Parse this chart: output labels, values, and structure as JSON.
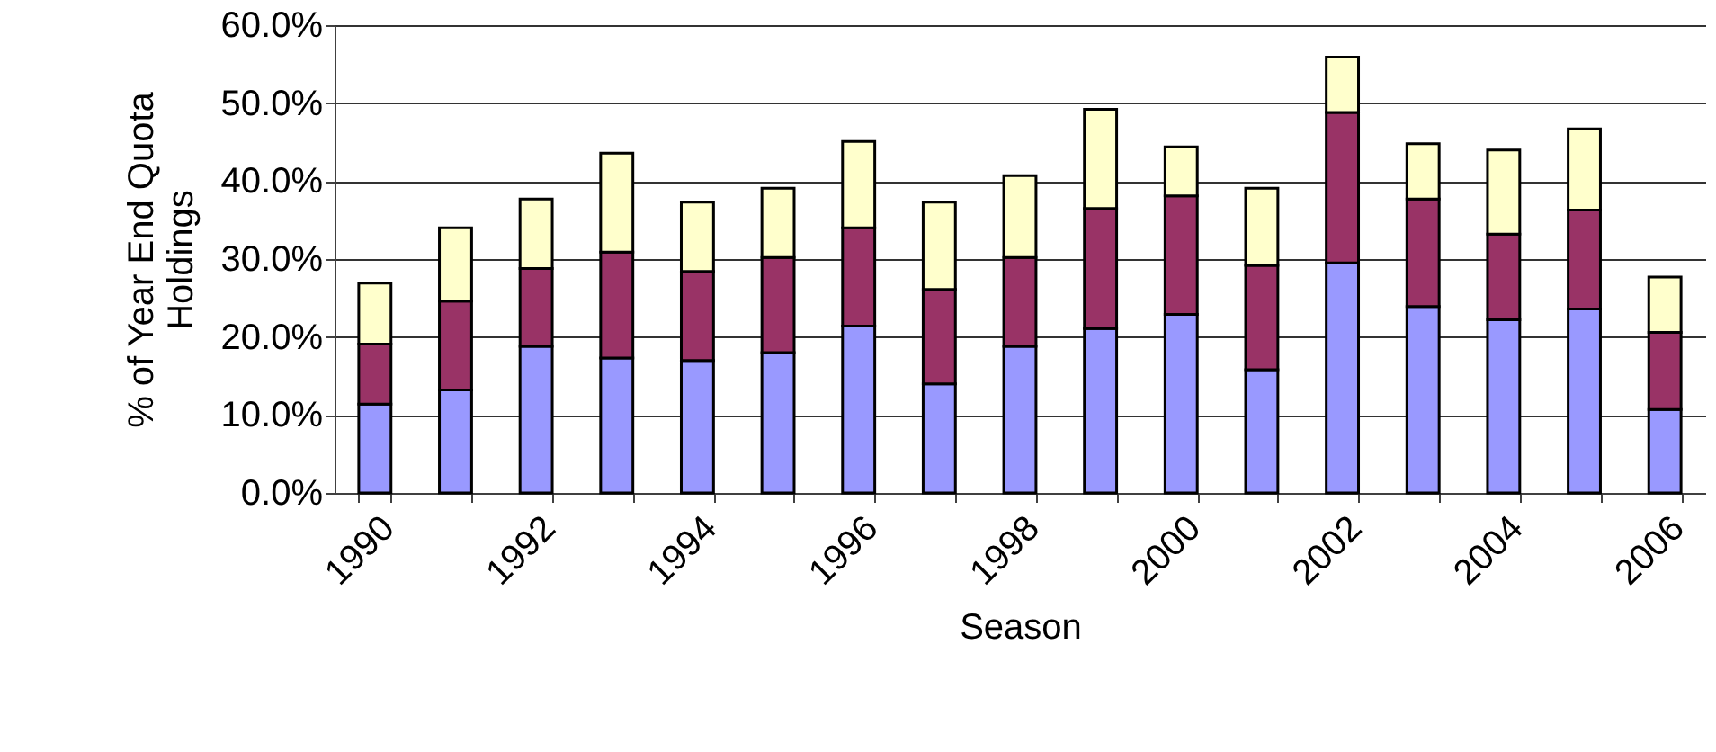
{
  "chart_data": {
    "type": "bar",
    "stacked": true,
    "xlabel": "Season",
    "ylabel": "% of Year End Quota Holdings",
    "categories": [
      "1990",
      null,
      "1992",
      null,
      "1994",
      null,
      "1996",
      null,
      "1998",
      null,
      "2000",
      null,
      "2002",
      null,
      "2004",
      null,
      "2006"
    ],
    "series": [
      {
        "color": "#9999ff",
        "values": [
          11.4,
          13.2,
          18.8,
          17.3,
          17.0,
          18.0,
          21.4,
          14.0,
          18.8,
          21.1,
          22.9,
          15.8,
          29.5,
          23.9,
          22.2,
          23.6,
          10.7
        ]
      },
      {
        "color": "#993366",
        "values": [
          7.7,
          11.4,
          10.0,
          13.6,
          11.4,
          12.2,
          12.6,
          12.1,
          11.4,
          15.4,
          15.2,
          13.4,
          19.3,
          13.8,
          11.0,
          12.7,
          9.9
        ]
      },
      {
        "color": "#ffffcc",
        "values": [
          7.8,
          9.4,
          8.9,
          12.7,
          8.9,
          8.9,
          11.1,
          11.2,
          10.5,
          12.7,
          6.3,
          9.9,
          7.1,
          7.1,
          10.8,
          10.4,
          7.1
        ]
      }
    ],
    "ylim": [
      0,
      60
    ],
    "yticks": [
      {
        "value": 0,
        "label": "0.0%"
      },
      {
        "value": 10,
        "label": "10.0%"
      },
      {
        "value": 20,
        "label": "20.0%"
      },
      {
        "value": 30,
        "label": "30.0%"
      },
      {
        "value": 40,
        "label": "40.0%"
      },
      {
        "value": 50,
        "label": "50.0%"
      },
      {
        "value": 60,
        "label": "60.0%"
      }
    ],
    "grid": "y"
  }
}
